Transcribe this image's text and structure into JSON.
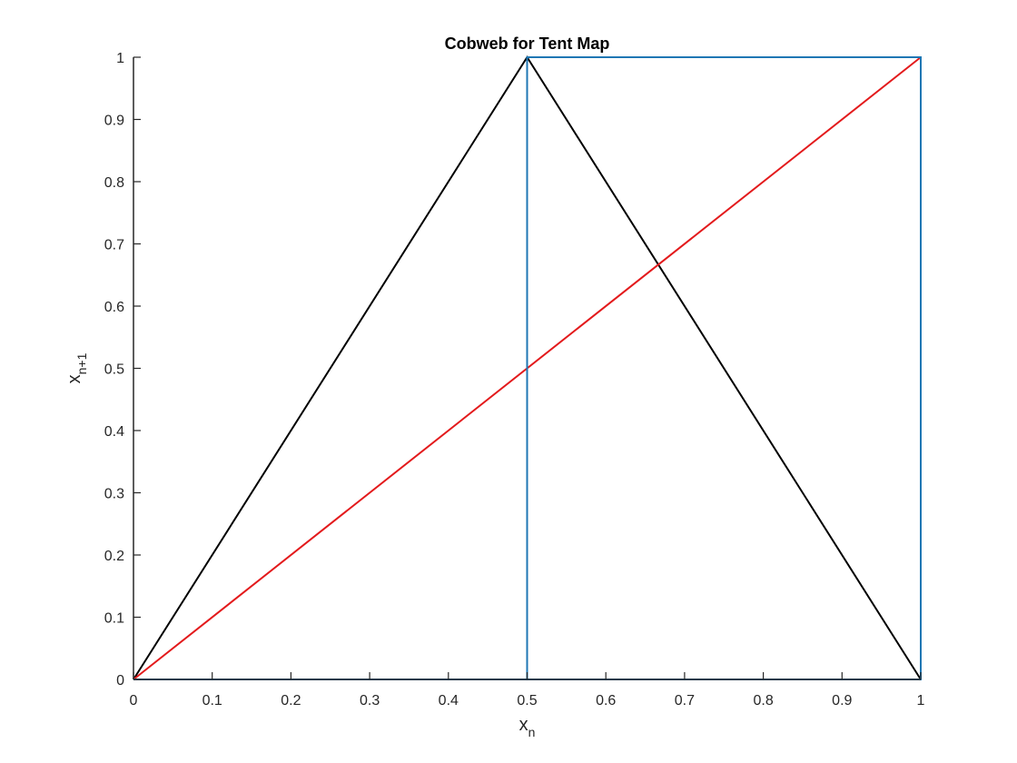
{
  "chart_data": {
    "type": "line",
    "title": "Cobweb for Tent Map",
    "xlabel": {
      "base": "x",
      "sub": "n"
    },
    "ylabel": {
      "base": "x",
      "sub": "n+1"
    },
    "xlim": [
      0,
      1
    ],
    "ylim": [
      0,
      1
    ],
    "xticks": [
      0,
      0.1,
      0.2,
      0.3,
      0.4,
      0.5,
      0.6,
      0.7,
      0.8,
      0.9,
      1
    ],
    "xtick_labels": [
      "0",
      "0.1",
      "0.2",
      "0.3",
      "0.4",
      "0.5",
      "0.6",
      "0.7",
      "0.8",
      "0.9",
      "1"
    ],
    "yticks": [
      0,
      0.1,
      0.2,
      0.3,
      0.4,
      0.5,
      0.6,
      0.7,
      0.8,
      0.9,
      1
    ],
    "ytick_labels": [
      "0",
      "0.1",
      "0.2",
      "0.3",
      "0.4",
      "0.5",
      "0.6",
      "0.7",
      "0.8",
      "0.9",
      "1"
    ],
    "grid": false,
    "series": [
      {
        "color": "#000000",
        "x": [
          0,
          0.5,
          1
        ],
        "y": [
          0,
          1,
          0
        ]
      },
      {
        "color": "#e31a1c",
        "x": [
          0,
          1
        ],
        "y": [
          0,
          1
        ]
      },
      {
        "color": "#1f77b4",
        "x": [
          0,
          0,
          0.5,
          0.5,
          1,
          1,
          0
        ],
        "y": [
          0,
          0,
          0,
          1,
          1,
          0,
          0
        ]
      }
    ]
  }
}
